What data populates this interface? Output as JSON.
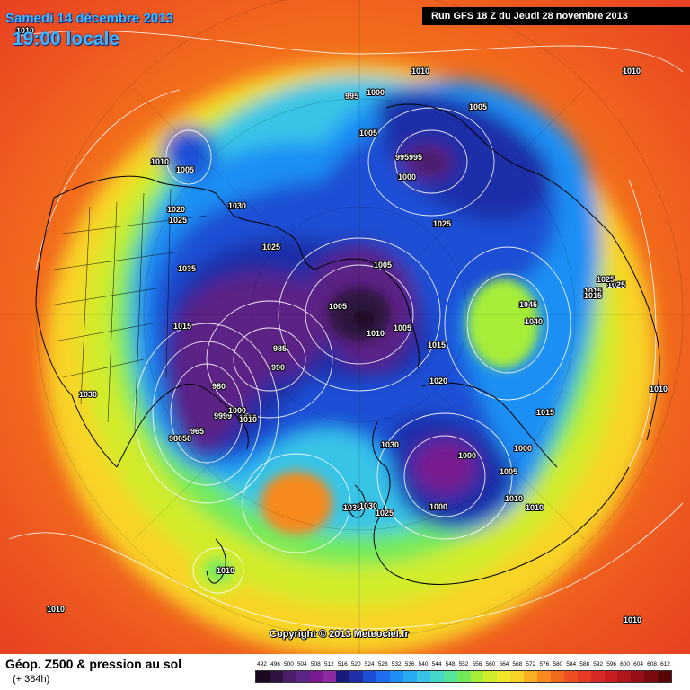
{
  "header": {
    "date": "Samedi 14 décembre 2013",
    "time": "19:00 locale",
    "run": "Run GFS 18 Z du Jeudi 28 novembre 2013"
  },
  "footer": {
    "title": "Géop. Z500 & pression au sol",
    "subtitle": "(+ 384h)",
    "copyright": "Copyright © 2013 Meteociel.fr"
  },
  "legend": {
    "labels": [
      "492",
      "496",
      "500",
      "504",
      "508",
      "512",
      "516",
      "520",
      "524",
      "528",
      "532",
      "536",
      "540",
      "544",
      "548",
      "552",
      "556",
      "560",
      "564",
      "568",
      "572",
      "576",
      "580",
      "584",
      "588",
      "592",
      "596",
      "600",
      "604",
      "608",
      "612"
    ],
    "colors": [
      "#1a0a1f",
      "#2e1340",
      "#4a1e6a",
      "#5c2485",
      "#7a1a90",
      "#8d2aa0",
      "#1a1a7a",
      "#1f2fa8",
      "#1c4fd6",
      "#1f6ef0",
      "#1f8ff5",
      "#28aaf0",
      "#37c4e6",
      "#45d8c8",
      "#55e49a",
      "#72ea5a",
      "#a6ee38",
      "#d2ec2c",
      "#f2e82a",
      "#f8d428",
      "#f8b022",
      "#f68a1e",
      "#f26a1c",
      "#ee4f20",
      "#e63a24",
      "#d92828",
      "#c81e22",
      "#b0161c",
      "#951016",
      "#780a10",
      "#5a0608"
    ]
  },
  "pressure_labels": [
    {
      "text": "1010"
    },
    {
      "text": "1010"
    },
    {
      "text": "1010"
    },
    {
      "text": "1010"
    },
    {
      "text": "995"
    },
    {
      "text": "1000"
    },
    {
      "text": "1005"
    },
    {
      "text": "1005"
    },
    {
      "text": "995995"
    },
    {
      "text": "1000"
    },
    {
      "text": "1005"
    },
    {
      "text": "1030"
    },
    {
      "text": "1020"
    },
    {
      "text": "1025"
    },
    {
      "text": "1025"
    },
    {
      "text": "1025"
    },
    {
      "text": "1035"
    },
    {
      "text": "1025"
    },
    {
      "text": "1005"
    },
    {
      "text": "1005"
    },
    {
      "text": "1005"
    },
    {
      "text": "1010"
    },
    {
      "text": "1045"
    },
    {
      "text": "1040"
    },
    {
      "text": "1015"
    },
    {
      "text": "1015"
    },
    {
      "text": "985"
    },
    {
      "text": "990"
    },
    {
      "text": "1015"
    },
    {
      "text": "1020"
    },
    {
      "text": "980"
    },
    {
      "text": "1030"
    },
    {
      "text": "9999"
    },
    {
      "text": "1000"
    },
    {
      "text": "1010"
    },
    {
      "text": "965"
    },
    {
      "text": "98050"
    },
    {
      "text": "1030"
    },
    {
      "text": "1000"
    },
    {
      "text": "1005"
    },
    {
      "text": "1000"
    },
    {
      "text": "1010"
    },
    {
      "text": "1010"
    },
    {
      "text": "1035"
    },
    {
      "text": "1030"
    },
    {
      "text": "1025"
    },
    {
      "text": "1000"
    },
    {
      "text": "1010"
    },
    {
      "text": "1010"
    },
    {
      "text": "1010"
    },
    {
      "text": "1010"
    },
    {
      "text": "1015"
    },
    {
      "text": "1025"
    },
    {
      "text": "1015"
    },
    {
      "text": "1010"
    }
  ]
}
